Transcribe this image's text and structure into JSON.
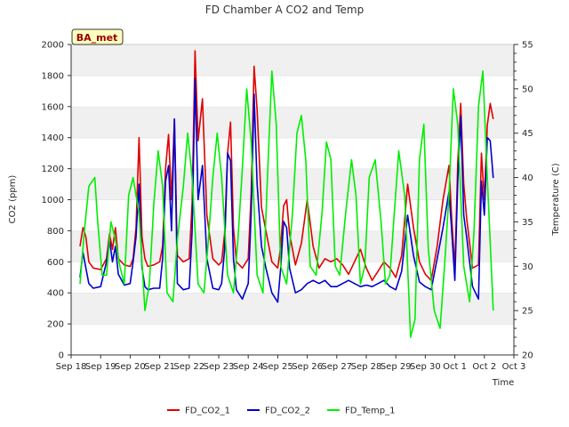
{
  "chart_data": {
    "type": "line",
    "title": "FD Chamber A CO2 and Temp",
    "xlabel": "Time",
    "ylabel": "CO2 (ppm)",
    "y2label": "Temperature (C)",
    "badge": "BA_met",
    "x_ticks": [
      "Sep 18",
      "Sep 19",
      "Sep 20",
      "Sep 21",
      "Sep 22",
      "Sep 23",
      "Sep 24",
      "Sep 25",
      "Sep 26",
      "Sep 27",
      "Sep 28",
      "Sep 29",
      "Sep 30",
      "Oct 1",
      "Oct 2",
      "Oct 3"
    ],
    "xlim": [
      0,
      15
    ],
    "ylim": [
      0,
      2000
    ],
    "y_ticks": [
      0,
      200,
      400,
      600,
      800,
      1000,
      1200,
      1400,
      1600,
      1800,
      2000
    ],
    "y2lim": [
      20,
      55
    ],
    "y2_ticks": [
      20,
      25,
      30,
      35,
      40,
      45,
      50,
      55
    ],
    "grid": "horizontal bands",
    "legend_position": "bottom",
    "series": [
      {
        "name": "FD_CO2_1",
        "color": "#e00000",
        "axis": "left",
        "x": [
          0.3,
          0.4,
          0.5,
          0.6,
          0.75,
          1.0,
          1.2,
          1.3,
          1.4,
          1.5,
          1.6,
          1.8,
          2.0,
          2.1,
          2.2,
          2.3,
          2.4,
          2.5,
          2.6,
          2.8,
          3.0,
          3.1,
          3.2,
          3.3,
          3.4,
          3.5,
          3.6,
          3.8,
          4.0,
          4.1,
          4.2,
          4.3,
          4.45,
          4.6,
          4.8,
          5.0,
          5.1,
          5.2,
          5.3,
          5.4,
          5.5,
          5.6,
          5.8,
          6.0,
          6.1,
          6.2,
          6.3,
          6.45,
          6.6,
          6.8,
          7.0,
          7.1,
          7.2,
          7.3,
          7.4,
          7.6,
          7.8,
          8.0,
          8.2,
          8.4,
          8.6,
          8.8,
          9.0,
          9.2,
          9.4,
          9.6,
          9.8,
          10.0,
          10.2,
          10.4,
          10.6,
          10.8,
          11.0,
          11.2,
          11.4,
          11.6,
          11.8,
          12.0,
          12.2,
          12.4,
          12.6,
          12.8,
          12.9,
          13.0,
          13.1,
          13.2,
          13.3,
          13.4,
          13.6,
          13.8,
          13.9,
          14.0,
          14.1,
          14.2,
          14.3
        ],
        "y": [
          700,
          820,
          760,
          600,
          560,
          550,
          620,
          780,
          680,
          820,
          620,
          580,
          570,
          620,
          820,
          1400,
          760,
          620,
          570,
          580,
          600,
          700,
          1200,
          1420,
          1000,
          1520,
          640,
          600,
          620,
          980,
          1960,
          1380,
          1650,
          900,
          620,
          580,
          600,
          780,
          1300,
          1500,
          820,
          600,
          560,
          620,
          1040,
          1860,
          1580,
          950,
          800,
          600,
          560,
          700,
          960,
          1000,
          780,
          580,
          720,
          1000,
          700,
          560,
          620,
          600,
          620,
          580,
          520,
          600,
          680,
          560,
          480,
          540,
          600,
          560,
          500,
          640,
          1100,
          820,
          600,
          520,
          480,
          700,
          1000,
          1220,
          860,
          560,
          1240,
          1620,
          1100,
          880,
          560,
          580,
          1300,
          1000,
          1480,
          1620,
          1520
        ]
      },
      {
        "name": "FD_CO2_2",
        "color": "#0000cc",
        "axis": "left",
        "x": [
          0.3,
          0.4,
          0.5,
          0.6,
          0.75,
          1.0,
          1.2,
          1.3,
          1.4,
          1.5,
          1.6,
          1.8,
          2.0,
          2.1,
          2.2,
          2.3,
          2.4,
          2.5,
          2.6,
          2.8,
          3.0,
          3.1,
          3.2,
          3.3,
          3.4,
          3.5,
          3.6,
          3.8,
          4.0,
          4.1,
          4.2,
          4.3,
          4.45,
          4.6,
          4.8,
          5.0,
          5.1,
          5.2,
          5.3,
          5.4,
          5.5,
          5.6,
          5.8,
          6.0,
          6.1,
          6.2,
          6.3,
          6.45,
          6.6,
          6.8,
          7.0,
          7.1,
          7.2,
          7.3,
          7.4,
          7.6,
          7.8,
          8.0,
          8.2,
          8.4,
          8.6,
          8.8,
          9.0,
          9.2,
          9.4,
          9.6,
          9.8,
          10.0,
          10.2,
          10.4,
          10.6,
          10.8,
          11.0,
          11.2,
          11.4,
          11.6,
          11.8,
          12.0,
          12.2,
          12.4,
          12.6,
          12.8,
          12.9,
          13.0,
          13.1,
          13.2,
          13.3,
          13.4,
          13.6,
          13.8,
          13.9,
          14.0,
          14.1,
          14.2,
          14.3
        ],
        "y": [
          500,
          660,
          560,
          460,
          430,
          440,
          600,
          740,
          600,
          700,
          520,
          450,
          460,
          600,
          760,
          1100,
          560,
          440,
          420,
          430,
          430,
          620,
          1120,
          1220,
          800,
          1520,
          460,
          420,
          430,
          800,
          1780,
          1000,
          1220,
          620,
          430,
          420,
          460,
          680,
          1300,
          1250,
          620,
          420,
          360,
          460,
          900,
          1680,
          1100,
          700,
          560,
          400,
          340,
          560,
          860,
          820,
          560,
          400,
          420,
          460,
          480,
          460,
          480,
          440,
          440,
          460,
          480,
          460,
          440,
          450,
          440,
          460,
          480,
          440,
          420,
          540,
          900,
          640,
          470,
          440,
          420,
          620,
          820,
          1050,
          780,
          480,
          1120,
          1540,
          900,
          760,
          440,
          360,
          1120,
          900,
          1400,
          1380,
          1140
        ]
      },
      {
        "name": "FD_Temp_1",
        "color": "#00ee00",
        "axis": "right",
        "x": [
          0.3,
          0.45,
          0.6,
          0.8,
          0.9,
          1.05,
          1.2,
          1.35,
          1.5,
          1.65,
          1.8,
          1.95,
          2.1,
          2.3,
          2.5,
          2.65,
          2.8,
          2.95,
          3.1,
          3.25,
          3.45,
          3.6,
          3.8,
          3.95,
          4.1,
          4.3,
          4.5,
          4.65,
          4.8,
          4.95,
          5.1,
          5.3,
          5.5,
          5.65,
          5.8,
          5.95,
          6.1,
          6.3,
          6.5,
          6.65,
          6.8,
          6.95,
          7.1,
          7.3,
          7.5,
          7.65,
          7.8,
          7.95,
          8.1,
          8.3,
          8.5,
          8.65,
          8.8,
          8.95,
          9.1,
          9.3,
          9.5,
          9.65,
          9.8,
          9.95,
          10.1,
          10.3,
          10.5,
          10.65,
          10.8,
          10.95,
          11.1,
          11.3,
          11.5,
          11.65,
          11.8,
          11.95,
          12.1,
          12.3,
          12.5,
          12.65,
          12.8,
          12.95,
          13.1,
          13.3,
          13.5,
          13.65,
          13.8,
          13.95,
          14.1,
          14.3
        ],
        "y": [
          28,
          34,
          39,
          40,
          35,
          29,
          29,
          35,
          33,
          30,
          28,
          38,
          40,
          36,
          25,
          28,
          37,
          43,
          39,
          27,
          26,
          33,
          39,
          45,
          40,
          28,
          27,
          33,
          40,
          45,
          40,
          29,
          27,
          33,
          41,
          50,
          44,
          29,
          27,
          40,
          52,
          46,
          30,
          28,
          36,
          45,
          47,
          42,
          30,
          29,
          36,
          44,
          42,
          30,
          29,
          36,
          42,
          38,
          28,
          30,
          40,
          42,
          35,
          28,
          29,
          36,
          43,
          38,
          22,
          24,
          42,
          46,
          32,
          25,
          23,
          30,
          38,
          50,
          46,
          30,
          26,
          34,
          48,
          52,
          40,
          25
        ]
      }
    ]
  }
}
